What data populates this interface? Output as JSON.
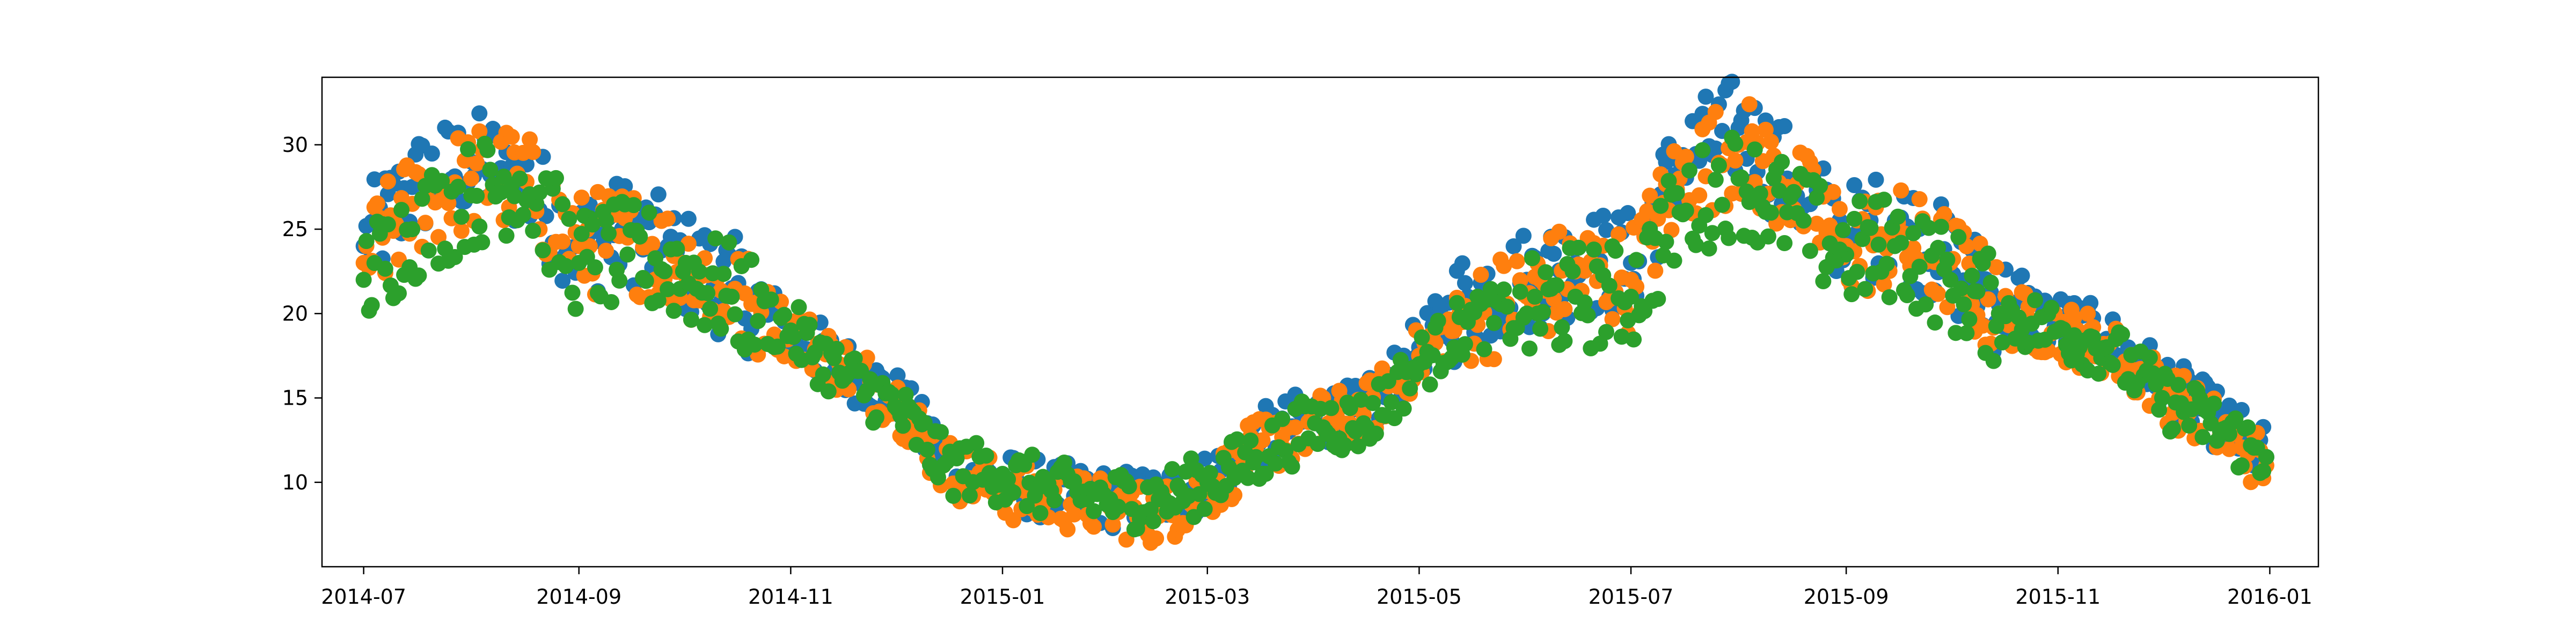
{
  "chart_data": {
    "type": "scatter",
    "title": "",
    "xlabel": "",
    "ylabel": "",
    "x_ticks": [
      "2014-07",
      "2014-09",
      "2014-11",
      "2015-01",
      "2015-03",
      "2015-05",
      "2015-07",
      "2015-09",
      "2015-11",
      "2016-01"
    ],
    "xlim": [
      "2014-06-19",
      "2016-01-15"
    ],
    "y_ticks": [
      10,
      15,
      20,
      25,
      30
    ],
    "ylim": [
      5.0,
      34.0
    ],
    "grid": false,
    "series": [
      {
        "color": "#1f77b4",
        "x": [
          "2014-07-01",
          "2014-07-15",
          "2014-08-01",
          "2014-08-15",
          "2014-09-01",
          "2014-09-15",
          "2014-10-01",
          "2014-10-15",
          "2014-11-01",
          "2014-11-15",
          "2014-12-01",
          "2014-12-15",
          "2015-01-01",
          "2015-01-15",
          "2015-02-01",
          "2015-02-15",
          "2015-03-01",
          "2015-03-15",
          "2015-04-01",
          "2015-04-15",
          "2015-05-01",
          "2015-05-15",
          "2015-06-01",
          "2015-06-15",
          "2015-07-01",
          "2015-07-15",
          "2015-08-01",
          "2015-08-15",
          "2015-09-01",
          "2015-09-15",
          "2015-10-01",
          "2015-10-15",
          "2015-11-01",
          "2015-11-15",
          "2015-12-01",
          "2015-12-15",
          "2015-12-31"
        ],
        "values": [
          24,
          27.5,
          29,
          28,
          24,
          25,
          23,
          21.5,
          19,
          17,
          15,
          11.5,
          10,
          9.5,
          9,
          9,
          10,
          12.5,
          14,
          14,
          18,
          21,
          22,
          23,
          23,
          29,
          31,
          28,
          24.5,
          25.5,
          23,
          20.5,
          19.5,
          18.5,
          16,
          14,
          11.5
        ]
      },
      {
        "color": "#ff7f0e",
        "x": [
          "2014-07-01",
          "2014-07-15",
          "2014-08-01",
          "2014-08-15",
          "2014-09-01",
          "2014-09-15",
          "2014-10-01",
          "2014-10-15",
          "2014-11-01",
          "2014-11-15",
          "2014-12-01",
          "2014-12-15",
          "2015-01-01",
          "2015-01-15",
          "2015-02-01",
          "2015-02-15",
          "2015-03-01",
          "2015-03-15",
          "2015-04-01",
          "2015-04-15",
          "2015-05-01",
          "2015-05-15",
          "2015-06-01",
          "2015-06-15",
          "2015-07-01",
          "2015-07-15",
          "2015-08-01",
          "2015-08-15",
          "2015-09-01",
          "2015-09-15",
          "2015-10-01",
          "2015-10-15",
          "2015-11-01",
          "2015-11-15",
          "2015-12-01",
          "2015-12-15",
          "2015-12-31"
        ],
        "values": [
          23,
          26.5,
          28,
          28,
          24,
          24.5,
          23,
          21,
          19,
          17,
          15,
          11,
          9.5,
          9,
          8.5,
          8,
          9.5,
          12,
          13.5,
          14,
          17.5,
          20,
          21,
          22.5,
          22,
          28,
          30,
          27.5,
          24,
          24.5,
          23,
          20,
          19,
          18,
          15.5,
          13.5,
          11
        ]
      },
      {
        "color": "#2ca02c",
        "x": [
          "2014-07-01",
          "2014-07-15",
          "2014-08-01",
          "2014-08-15",
          "2014-09-01",
          "2014-09-15",
          "2014-10-01",
          "2014-10-15",
          "2014-11-01",
          "2014-11-15",
          "2014-12-01",
          "2014-12-15",
          "2015-01-01",
          "2015-01-15",
          "2015-02-01",
          "2015-02-15",
          "2015-03-01",
          "2015-03-15",
          "2015-04-01",
          "2015-04-15",
          "2015-05-01",
          "2015-05-15",
          "2015-06-01",
          "2015-06-15",
          "2015-07-01",
          "2015-07-15",
          "2015-08-01",
          "2015-08-15",
          "2015-09-01",
          "2015-09-15",
          "2015-10-01",
          "2015-10-15",
          "2015-11-01",
          "2015-11-15",
          "2015-12-01",
          "2015-12-15",
          "2015-12-31"
        ],
        "values": [
          22,
          25,
          27,
          28,
          23,
          23.5,
          22.5,
          21,
          19,
          16.5,
          14.5,
          11,
          10.5,
          9.5,
          9,
          9,
          10,
          11.5,
          13.5,
          13.5,
          17,
          19.5,
          20,
          21,
          21,
          26,
          28,
          26,
          23.5,
          24,
          22,
          20,
          19,
          18,
          15,
          13.5,
          11.5
        ]
      }
    ]
  }
}
